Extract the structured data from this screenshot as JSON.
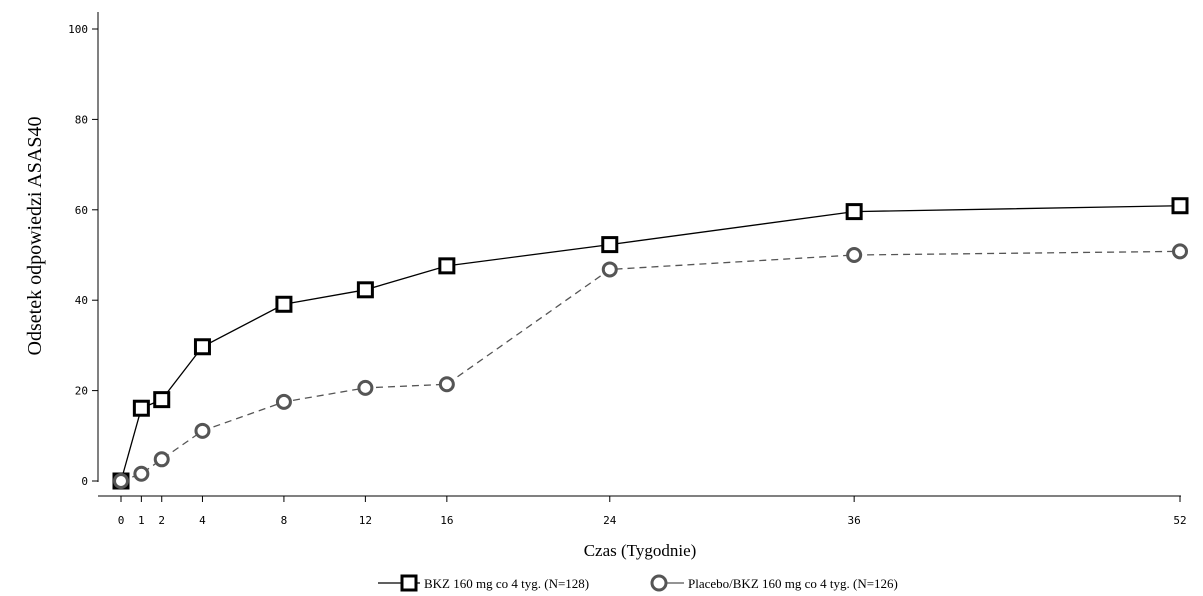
{
  "chart_data": {
    "type": "line",
    "xlabel": "Czas (Tygodnie)",
    "ylabel": "Odsetek odpowiedzi ASAS40",
    "x_ticks": [
      0,
      1,
      2,
      4,
      8,
      12,
      16,
      24,
      36,
      52
    ],
    "y_ticks": [
      0,
      20,
      40,
      60,
      80,
      100
    ],
    "xlim": [
      0,
      52
    ],
    "ylim": [
      0,
      100
    ],
    "grid": false,
    "legend_position": "bottom-center",
    "series": [
      {
        "name": "BKZ 160 mg co 4 tyg. (N=128)",
        "marker": "square",
        "line_style": "solid",
        "color": "#000000",
        "x": [
          0,
          1,
          2,
          4,
          8,
          12,
          16,
          24,
          36,
          52
        ],
        "y": [
          0,
          16.1,
          18.0,
          29.7,
          39.1,
          42.3,
          47.6,
          52.3,
          59.6,
          60.9
        ]
      },
      {
        "name": "Placebo/BKZ 160 mg co 4 tyg. (N=126)",
        "marker": "circle",
        "line_style": "dashed",
        "color": "#555555",
        "x": [
          0,
          1,
          2,
          4,
          8,
          12,
          16,
          24,
          36,
          52
        ],
        "y": [
          0,
          1.6,
          4.8,
          11.1,
          17.5,
          20.6,
          21.4,
          46.8,
          50.0,
          50.8
        ]
      }
    ]
  }
}
